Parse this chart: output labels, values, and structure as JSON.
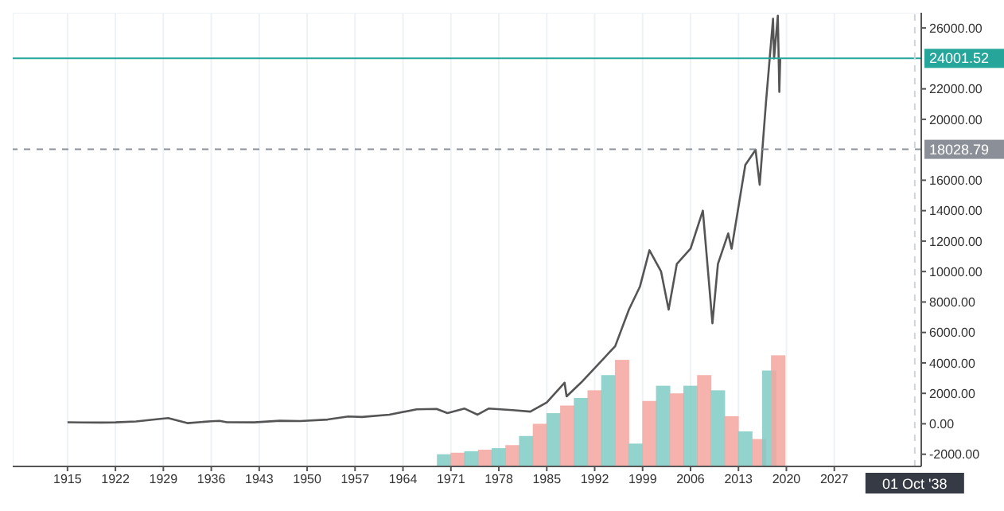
{
  "chart_data": {
    "type": "line",
    "grid": true,
    "legend": false,
    "marker": "none",
    "line_style": "solid",
    "xlim": [
      1907,
      2039.7
    ],
    "xticks": [
      1915,
      1922,
      1929,
      1936,
      1943,
      1950,
      1957,
      1964,
      1971,
      1978,
      1985,
      1992,
      1999,
      2006,
      2013,
      2020,
      2027
    ],
    "ylim": [
      -2800,
      27000
    ],
    "yticks": [
      {
        "value": -2000,
        "label": "-2000.00"
      },
      {
        "value": 0,
        "label": "0.00"
      },
      {
        "value": 2000,
        "label": "2000.00"
      },
      {
        "value": 4000,
        "label": "4000.00"
      },
      {
        "value": 6000,
        "label": "6000.00"
      },
      {
        "value": 8000,
        "label": "8000.00"
      },
      {
        "value": 10000,
        "label": "10000.00"
      },
      {
        "value": 12000,
        "label": "12000.00"
      },
      {
        "value": 14000,
        "label": "14000.00"
      },
      {
        "value": 16000,
        "label": "16000.00"
      },
      {
        "value": 20000,
        "label": "20000.00"
      },
      {
        "value": 22000,
        "label": "22000.00"
      },
      {
        "value": 26000,
        "label": "26000.00"
      }
    ],
    "ref_lines": [
      {
        "axis": "y",
        "value": 24001.52,
        "label": "24001.52",
        "color": "#26a69a",
        "line_style": "solid"
      },
      {
        "axis": "y",
        "value": 18028.79,
        "label": "18028.79",
        "color": "#8a8f98",
        "line_style": "dashed"
      },
      {
        "axis": "x",
        "value": 2038.75,
        "label": "01 Oct '38",
        "color": "#d0d4da",
        "line_style": "dashed"
      }
    ],
    "series": [
      {
        "color": "#555555",
        "x": [
          1915,
          1917,
          1920,
          1922,
          1925,
          1928,
          1929.7,
          1932.5,
          1936,
          1937.2,
          1938.3,
          1942.3,
          1946,
          1949,
          1953,
          1956,
          1958,
          1962,
          1966,
          1968.9,
          1970.5,
          1973,
          1974.9,
          1976.5,
          1980,
          1982.6,
          1985,
          1987.6,
          1987.9,
          1990,
          1995,
          1997,
          1998.6,
          2000,
          2001.7,
          2002.8,
          2004,
          2006,
          2007.8,
          2009.2,
          2010,
          2011.5,
          2012,
          2014,
          2015.5,
          2016.1,
          2017,
          2018.05,
          2018.2,
          2018.75,
          2018.97,
          2019.1
        ],
        "values": [
          100,
          90,
          80,
          95,
          150,
          300,
          380,
          45,
          170,
          190,
          100,
          95,
          200,
          180,
          280,
          480,
          450,
          600,
          950,
          980,
          700,
          1000,
          600,
          1000,
          900,
          800,
          1400,
          2700,
          1800,
          2700,
          5100,
          7500,
          9000,
          11400,
          10000,
          7500,
          10500,
          11500,
          14000,
          6600,
          10500,
          12500,
          11500,
          17000,
          18000,
          15700,
          21000,
          26600,
          24000,
          26800,
          21800,
          24000
        ]
      },
      {
        "type": "bar",
        "colors": [
          "#80cbc4",
          "#f4a6a0",
          "#80cbc4",
          "#f4a6a0",
          "#80cbc4",
          "#f4a6a0",
          "#80cbc4",
          "#f4a6a0",
          "#80cbc4",
          "#f4a6a0",
          "#80cbc4",
          "#f4a6a0",
          "#80cbc4",
          "#f4a6a0",
          "#80cbc4",
          "#f4a6a0",
          "#80cbc4",
          "#f4a6a0",
          "#80cbc4",
          "#f4a6a0",
          "#80cbc4",
          "#f4a6a0",
          "#80cbc4",
          "#f4a6a0",
          "#80cbc4",
          "#f4a6a0"
        ],
        "x": [
          1970,
          1972,
          1974,
          1976,
          1978,
          1980,
          1982,
          1984,
          1986,
          1988,
          1990,
          1992,
          1994,
          1996,
          1998,
          2000,
          2002,
          2004,
          2006,
          2008,
          2010,
          2012,
          2014,
          2016,
          2017.5,
          2018.8
        ],
        "base": [
          -2800,
          -2800,
          -2800,
          -2800,
          -2800,
          -2800,
          -2800,
          -2800,
          -2800,
          -2800,
          -2800,
          -2800,
          -2800,
          -2800,
          -2800,
          -2800,
          -2800,
          -2800,
          -2800,
          -2800,
          -2800,
          -2800,
          -2800,
          -2800,
          -2800,
          -2800
        ],
        "values": [
          800,
          900,
          1000,
          1100,
          1200,
          1400,
          2000,
          2800,
          3500,
          4000,
          4500,
          5000,
          6000,
          7000,
          1500,
          4300,
          5300,
          4800,
          5300,
          6000,
          5000,
          3300,
          2300,
          1800,
          6300,
          7300
        ]
      }
    ]
  }
}
